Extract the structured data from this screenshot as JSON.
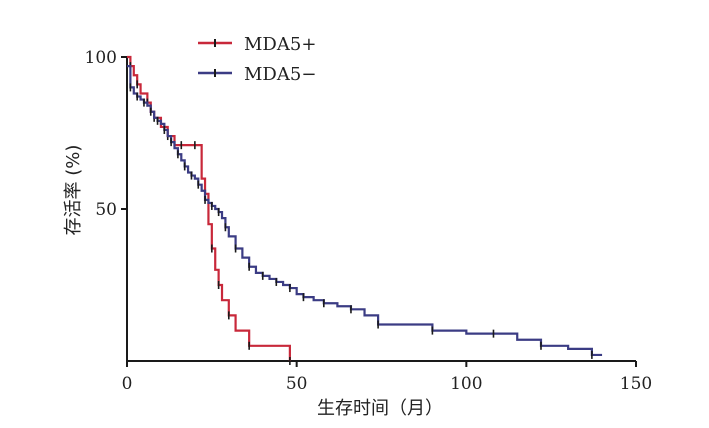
{
  "chart_data": {
    "type": "line",
    "subtype": "kaplan-meier-step",
    "xlabel": "生存时间（月）",
    "ylabel": "存活率 (%)",
    "xlim": [
      0,
      150
    ],
    "ylim": [
      0,
      100
    ],
    "xticks": [
      "0",
      "50",
      "100",
      "150"
    ],
    "yticks": [
      "50",
      "100"
    ],
    "grid": false,
    "legend_placement": "top-left",
    "series": [
      {
        "name": "MDA5+",
        "color": "#c8283a",
        "x": [
          0,
          1,
          2,
          3,
          4,
          6,
          7,
          8,
          10,
          12,
          14,
          16,
          18,
          20,
          22,
          23,
          24,
          25,
          26,
          27,
          28,
          30,
          32,
          36,
          40,
          48
        ],
        "y": [
          100,
          97,
          94,
          91,
          88,
          85,
          82,
          80,
          77,
          74,
          71,
          71,
          71,
          71,
          60,
          55,
          45,
          37,
          30,
          25,
          20,
          15,
          10,
          5,
          5,
          0
        ]
      },
      {
        "name": "MDA5−",
        "color": "#3b3c84",
        "x": [
          0,
          1,
          2,
          3,
          4,
          5,
          6,
          7,
          8,
          9,
          10,
          11,
          12,
          13,
          14,
          15,
          16,
          17,
          18,
          19,
          20,
          21,
          22,
          23,
          24,
          25,
          26,
          27,
          28,
          29,
          30,
          32,
          34,
          36,
          38,
          40,
          42,
          44,
          46,
          48,
          50,
          52,
          55,
          58,
          62,
          66,
          70,
          74,
          80,
          90,
          100,
          108,
          115,
          122,
          130,
          137,
          140
        ],
        "y": [
          97,
          90,
          88,
          87,
          86,
          85,
          84,
          82,
          80,
          79,
          78,
          76,
          74,
          72,
          70,
          68,
          66,
          64,
          62,
          61,
          60,
          58,
          56,
          53,
          52,
          51,
          50,
          49,
          47,
          44,
          41,
          37,
          34,
          31,
          29,
          28,
          27,
          26,
          25,
          24,
          22,
          21,
          20,
          19,
          18,
          17,
          15,
          12,
          12,
          10,
          9,
          9,
          7,
          5,
          4,
          2,
          2
        ]
      }
    ]
  }
}
